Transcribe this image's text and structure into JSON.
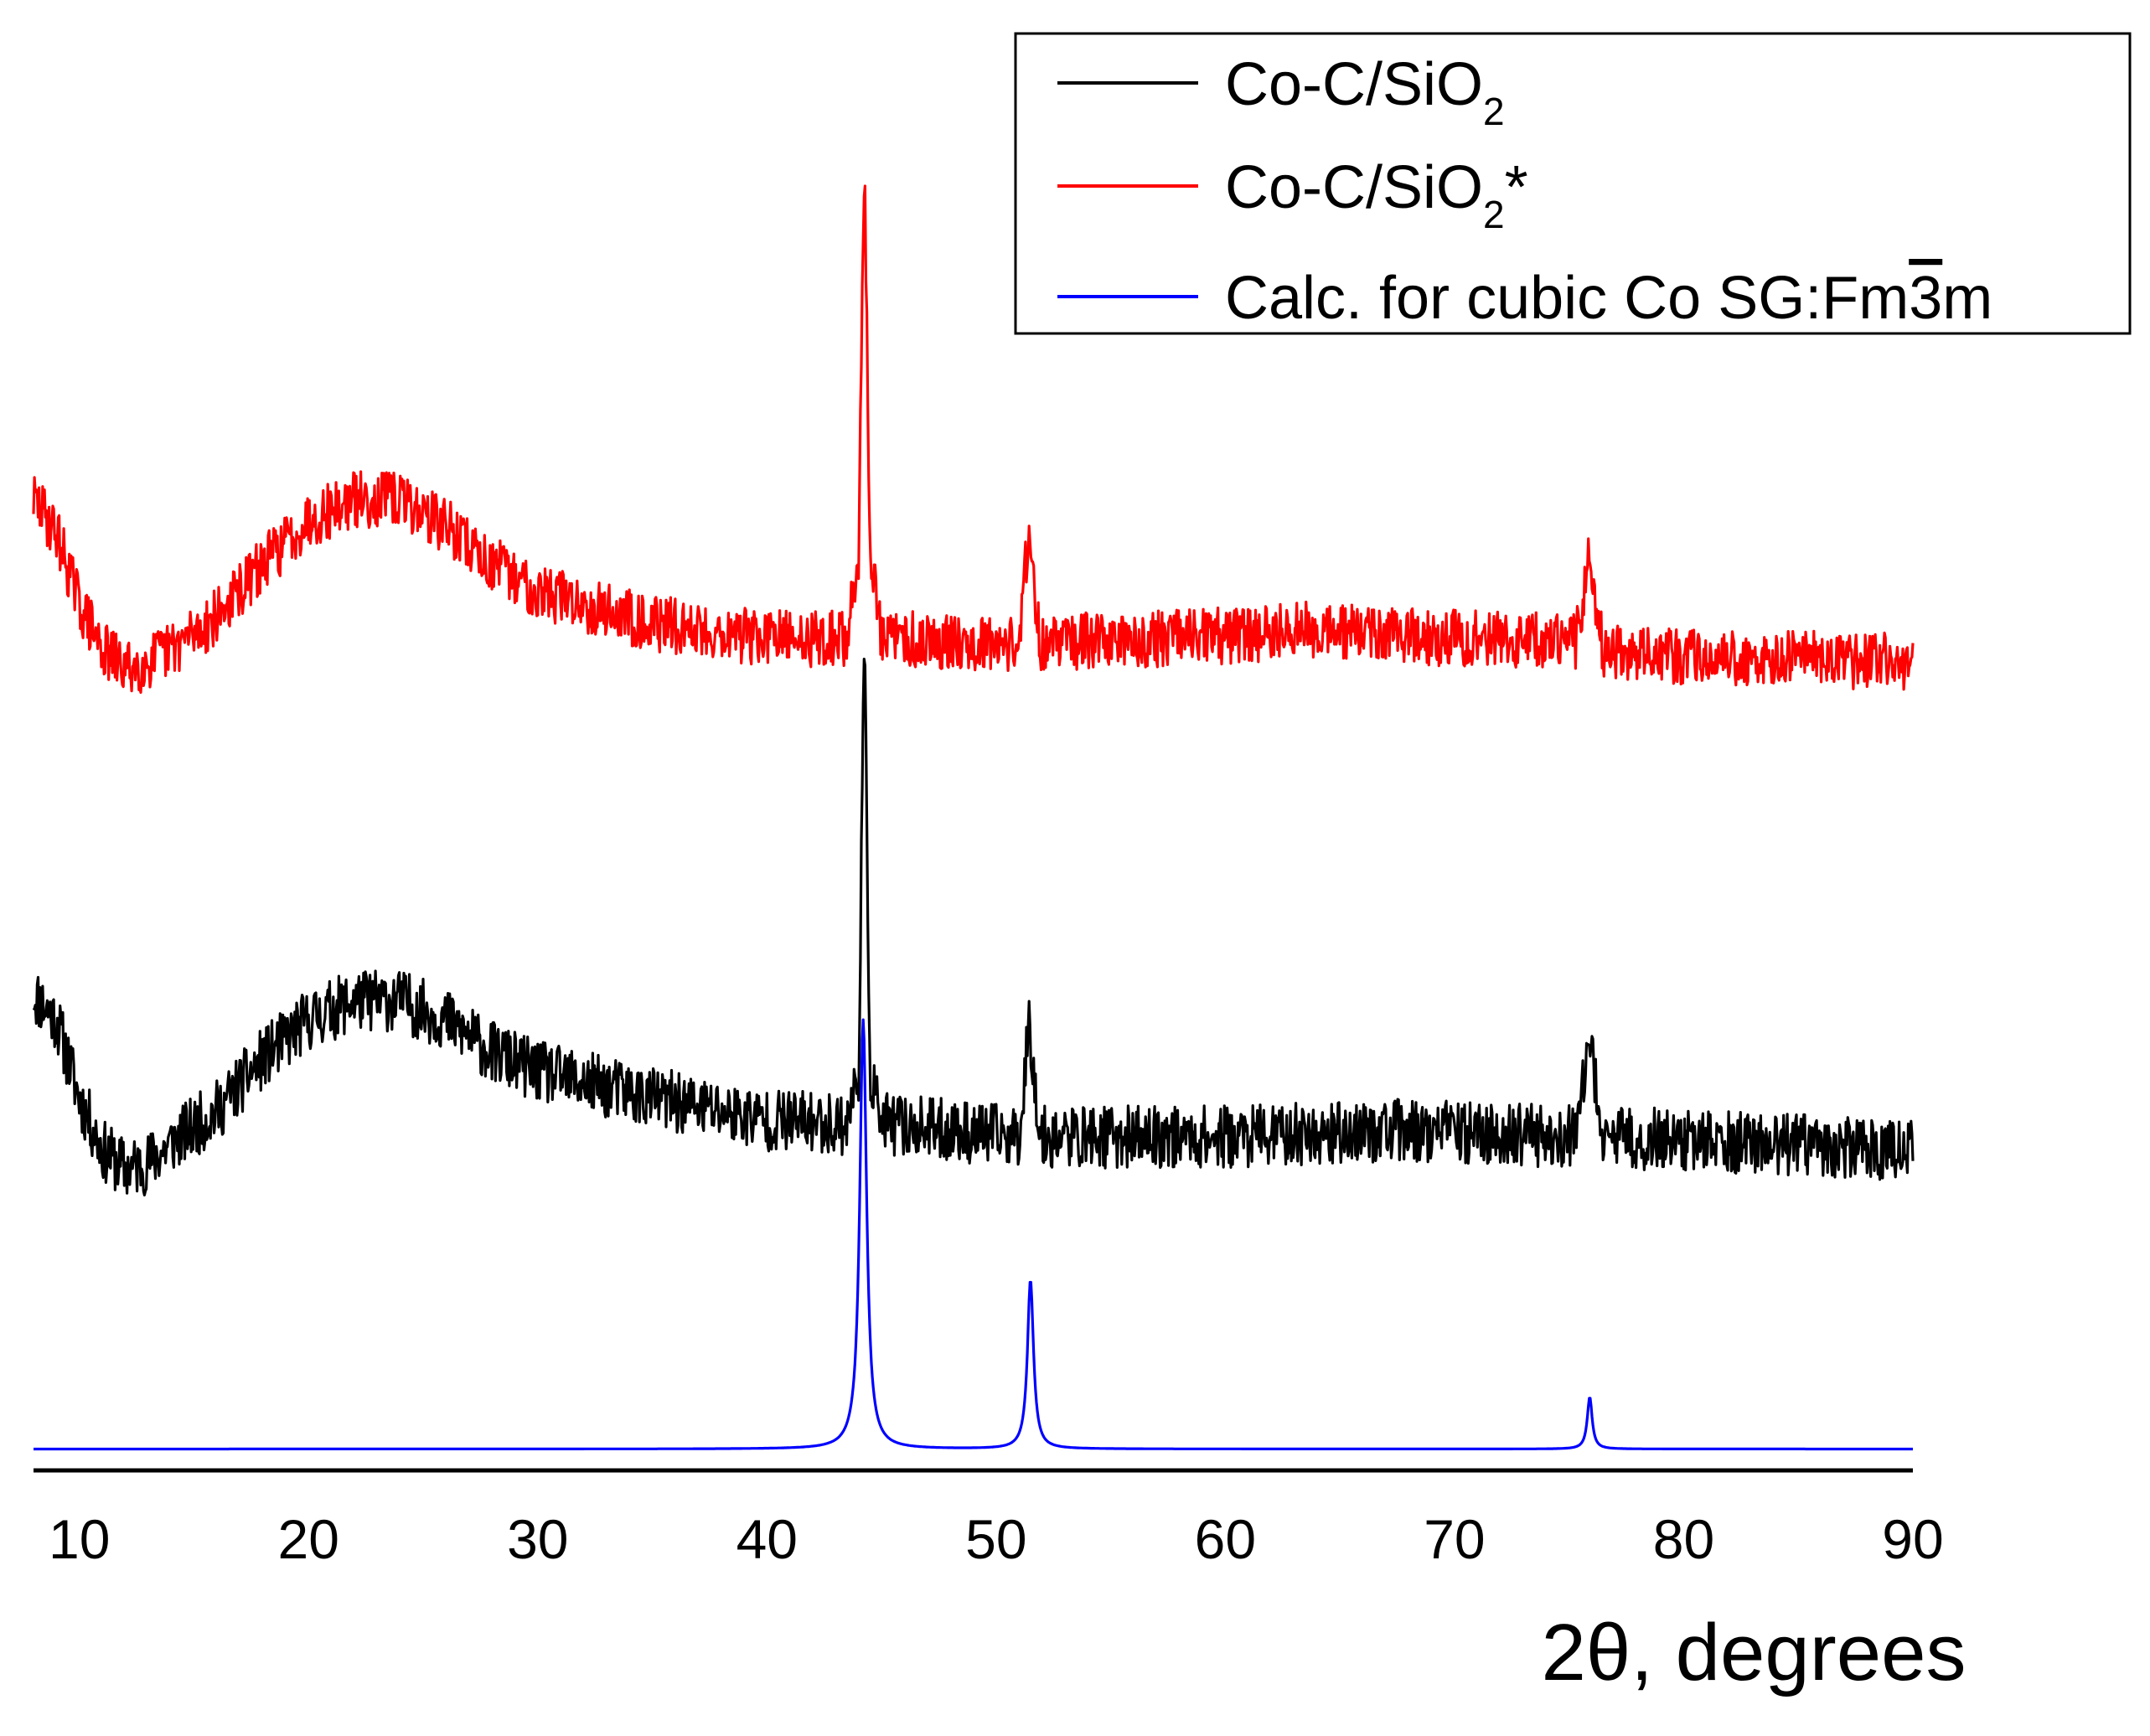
{
  "chart_data": {
    "type": "line",
    "title": "",
    "xlabel": "2θ, degrees",
    "ylabel": "",
    "xlim": [
      8,
      90
    ],
    "ylim": [
      0,
      105
    ],
    "y_axis_visible": false,
    "grid": false,
    "legend_position": "top-right",
    "x_ticks": [
      10,
      20,
      30,
      40,
      50,
      60,
      70,
      80,
      90
    ],
    "x_tick_labels": [
      "10",
      "20",
      "30",
      "40",
      "50",
      "60",
      "70",
      "80",
      "90"
    ],
    "series": [
      {
        "id": "co-c-sio2",
        "name": "Co-C/SiO",
        "name_sub": "2",
        "name_suffix": "",
        "color": "#000000",
        "noise": 2.4,
        "noise_seed": 11,
        "points": [
          [
            8,
            36.0
          ],
          [
            9,
            34.0
          ],
          [
            10,
            28.0
          ],
          [
            11,
            24.0
          ],
          [
            12,
            22.5
          ],
          [
            13,
            23.0
          ],
          [
            14,
            24.5
          ],
          [
            16,
            27.0
          ],
          [
            18,
            31.0
          ],
          [
            20,
            34.0
          ],
          [
            22,
            35.5
          ],
          [
            24,
            35.5
          ],
          [
            26,
            34.0
          ],
          [
            28,
            31.5
          ],
          [
            30,
            30.0
          ],
          [
            35,
            28.0
          ],
          [
            40,
            26.3
          ],
          [
            43.5,
            26.0
          ],
          [
            44.0,
            30.0
          ],
          [
            44.25,
            63.0
          ],
          [
            44.5,
            30.0
          ],
          [
            45.0,
            26.0
          ],
          [
            51.0,
            25.0
          ],
          [
            51.45,
            34.0
          ],
          [
            51.9,
            25.0
          ],
          [
            60,
            25.0
          ],
          [
            67.5,
            25.5
          ],
          [
            75.3,
            25.0
          ],
          [
            75.9,
            32.0
          ],
          [
            76.5,
            25.0
          ],
          [
            79,
            24.8
          ],
          [
            90,
            24.0
          ]
        ]
      },
      {
        "id": "co-c-sio2-star",
        "name": "Co-C/SiO",
        "name_sub": "2",
        "name_suffix": "*",
        "color": "#ff0000",
        "noise": 2.2,
        "noise_seed": 29,
        "points": [
          [
            8,
            74.0
          ],
          [
            9,
            71.5
          ],
          [
            10,
            66.0
          ],
          [
            11,
            62.5
          ],
          [
            12,
            61.0
          ],
          [
            13,
            61.5
          ],
          [
            14,
            62.5
          ],
          [
            16,
            65.0
          ],
          [
            18,
            69.0
          ],
          [
            20,
            72.5
          ],
          [
            22,
            74.0
          ],
          [
            24,
            74.0
          ],
          [
            26,
            72.0
          ],
          [
            28,
            69.0
          ],
          [
            30,
            67.0
          ],
          [
            35,
            64.5
          ],
          [
            40,
            63.3
          ],
          [
            43.5,
            63.3
          ],
          [
            44.0,
            70.0
          ],
          [
            44.25,
            100.0
          ],
          [
            44.5,
            70.0
          ],
          [
            45.0,
            63.3
          ],
          [
            51.0,
            63.0
          ],
          [
            51.45,
            72.0
          ],
          [
            51.9,
            63.0
          ],
          [
            60,
            63.5
          ],
          [
            64,
            64.0
          ],
          [
            67.5,
            63.5
          ],
          [
            75.3,
            63.0
          ],
          [
            75.9,
            69.5
          ],
          [
            76.5,
            62.5
          ],
          [
            79,
            62.0
          ],
          [
            90,
            61.5
          ]
        ]
      },
      {
        "id": "calc-cubic-co",
        "name": "Calc. for cubic Co SG:Fm",
        "name_sub": "",
        "name_suffix": "",
        "name_overbar": "3",
        "name_tail": "m",
        "color": "#0000ff",
        "noise": 0,
        "baseline": 1.0,
        "peaks": [
          {
            "x": 44.2,
            "height": 33.0,
            "width": 0.18
          },
          {
            "x": 51.5,
            "height": 13.0,
            "width": 0.16
          },
          {
            "x": 75.9,
            "height": 4.0,
            "width": 0.13
          }
        ]
      }
    ]
  }
}
